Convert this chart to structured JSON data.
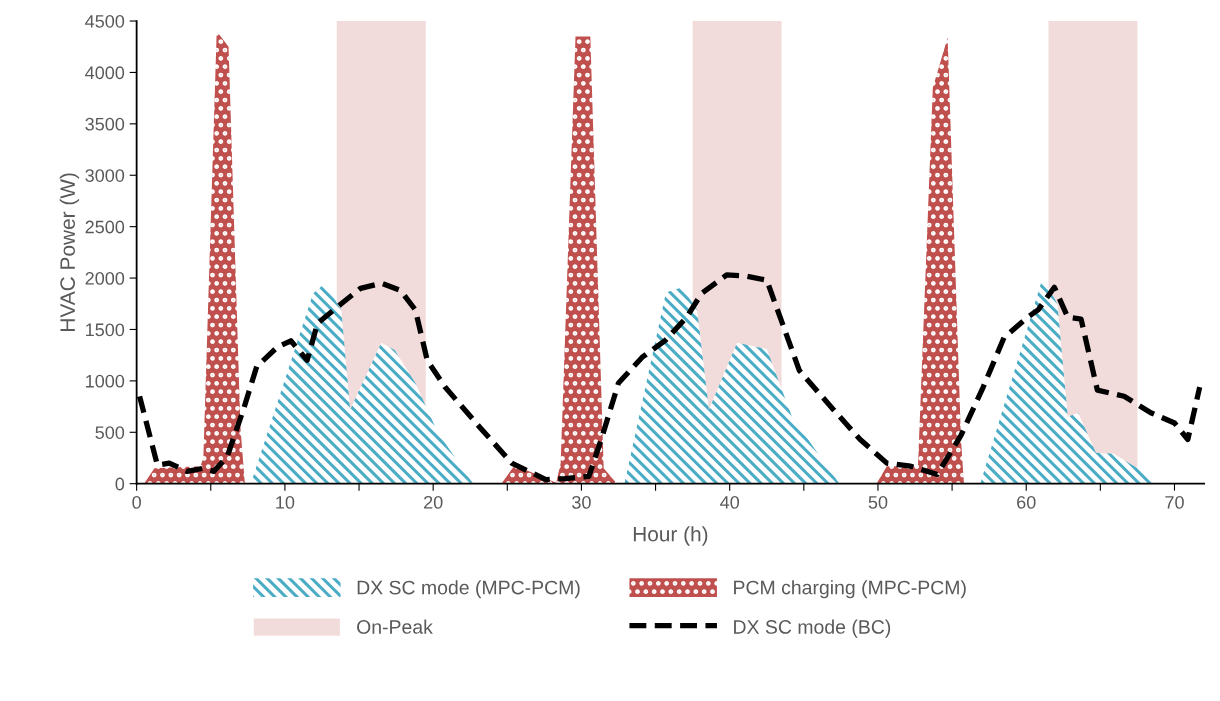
{
  "chart_data": {
    "type": "area",
    "xlabel": "Hour (h)",
    "ylabel": "HVAC Power (W)",
    "xlim": [
      0,
      72
    ],
    "ylim": [
      0,
      4500
    ],
    "xticks": [
      0,
      {
        "value": 5,
        "label": null
      },
      10,
      {
        "value": 15,
        "label": null
      },
      20,
      {
        "value": 25,
        "label": null
      },
      30,
      {
        "value": 35,
        "label": null
      },
      40,
      {
        "value": 45,
        "label": null
      },
      50,
      {
        "value": 55,
        "label": null
      },
      60,
      {
        "value": 65,
        "label": null
      },
      70
    ],
    "yticks": [
      0,
      500,
      1000,
      1500,
      2000,
      2500,
      3000,
      3500,
      4000,
      4500
    ],
    "grid": false,
    "legend": "bottom",
    "bands": [
      {
        "axis": "x",
        "from": 13.5,
        "to": 19.5,
        "label": "On-Peak",
        "color": "#f2dcdb"
      },
      {
        "axis": "x",
        "from": 37.5,
        "to": 43.5,
        "color": "#f2dcdb"
      },
      {
        "axis": "x",
        "from": 61.5,
        "to": 67.5,
        "color": "#f2dcdb"
      }
    ],
    "series": [
      {
        "name": "DX SC mode (MPC-PCM)",
        "color": "#4bacc6",
        "x": [
          7.7,
          11.9,
          12.7,
          13.8,
          14.4,
          16.5,
          17.4,
          18.8,
          20.3,
          22.7,
          32.9,
          35.7,
          36.8,
          37.8,
          38.6,
          40.5,
          42.5,
          44.2,
          47.4,
          56.9,
          61.1,
          62.1,
          62.8,
          63.5,
          64.7,
          65.9,
          67.5,
          68.9
        ],
        "values": [
          0,
          1850,
          1950,
          1690,
          720,
          1370,
          1300,
          980,
          500,
          0,
          0,
          1860,
          1910,
          1690,
          720,
          1370,
          1310,
          650,
          0,
          0,
          2000,
          1750,
          650,
          690,
          300,
          290,
          150,
          0
        ]
      },
      {
        "name": "PCM charging (MPC-PCM)",
        "color": "#c0504d",
        "x": [
          0.5,
          1.2,
          4.3,
          4.5,
          5.4,
          6.2,
          7.0,
          7.3,
          24.6,
          25.5,
          28.3,
          28.6,
          29.6,
          30.6,
          31.5,
          32.4,
          49.9,
          50.6,
          52.7,
          53.7,
          54.7,
          55.6,
          55.8
        ],
        "values": [
          0,
          150,
          170,
          250,
          4400,
          4250,
          550,
          0,
          0,
          180,
          10,
          200,
          4350,
          4350,
          150,
          0,
          0,
          170,
          170,
          3850,
          4340,
          430,
          0
        ]
      },
      {
        "name": "DX SC mode (BC)",
        "type": "line",
        "color": "#000000",
        "line_style": "dashed",
        "x": [
          0.2,
          1.4,
          2.2,
          3.4,
          4.5,
          5.2,
          6.1,
          7.2,
          8.1,
          9.5,
          10.4,
          11.5,
          12.2,
          13.8,
          15.1,
          16.5,
          17.8,
          18.8,
          19.6,
          20.8,
          23.2,
          25.3,
          27.6,
          28.9,
          30.5,
          31.4,
          32.5,
          34.1,
          35.7,
          37.1,
          38.1,
          39.8,
          41.1,
          42.5,
          43.4,
          44.7,
          47.0,
          48.8,
          50.6,
          52.2,
          54.0,
          55.6,
          57.1,
          58.5,
          60.1,
          60.8,
          61.9,
          62.8,
          63.7,
          64.8,
          66.6,
          68.4,
          70.0,
          70.9,
          71.7
        ],
        "values": [
          850,
          180,
          200,
          120,
          150,
          120,
          260,
          720,
          1140,
          1330,
          1390,
          1200,
          1560,
          1750,
          1900,
          1950,
          1880,
          1690,
          1200,
          940,
          540,
          200,
          40,
          50,
          70,
          460,
          980,
          1230,
          1400,
          1620,
          1850,
          2030,
          2020,
          1980,
          1620,
          1100,
          720,
          430,
          200,
          170,
          90,
          470,
          940,
          1420,
          1620,
          1690,
          1910,
          1620,
          1600,
          910,
          850,
          690,
          590,
          430,
          940
        ]
      }
    ]
  }
}
